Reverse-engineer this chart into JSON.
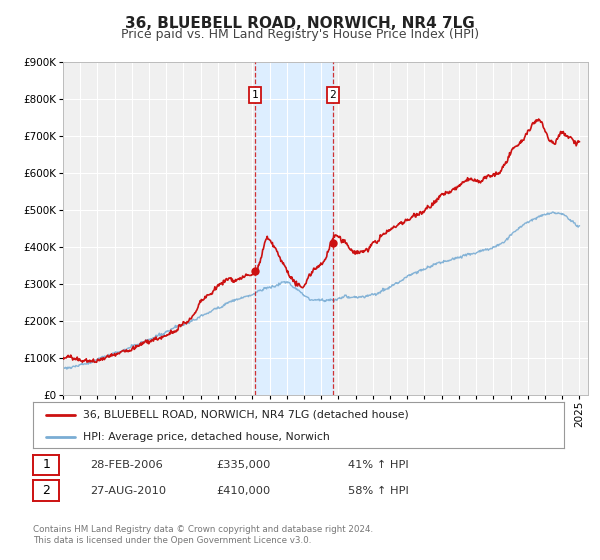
{
  "title": "36, BLUEBELL ROAD, NORWICH, NR4 7LG",
  "subtitle": "Price paid vs. HM Land Registry's House Price Index (HPI)",
  "ylim": [
    0,
    900000
  ],
  "yticks": [
    0,
    100000,
    200000,
    300000,
    400000,
    500000,
    600000,
    700000,
    800000,
    900000
  ],
  "ytick_labels": [
    "£0",
    "£100K",
    "£200K",
    "£300K",
    "£400K",
    "£500K",
    "£600K",
    "£700K",
    "£800K",
    "£900K"
  ],
  "xlim_start": 1995.0,
  "xlim_end": 2025.5,
  "background_color": "#ffffff",
  "plot_bg_color": "#f0f0f0",
  "grid_color": "#ffffff",
  "shade_color": "#ddeeff",
  "marker1_date": 2006.167,
  "marker1_value": 335000,
  "marker2_date": 2010.667,
  "marker2_value": 410000,
  "hpi_line_color": "#7aadd4",
  "price_line_color": "#cc1111",
  "legend_label_price": "36, BLUEBELL ROAD, NORWICH, NR4 7LG (detached house)",
  "legend_label_hpi": "HPI: Average price, detached house, Norwich",
  "table_row1": [
    "1",
    "28-FEB-2006",
    "£335,000",
    "41% ↑ HPI"
  ],
  "table_row2": [
    "2",
    "27-AUG-2010",
    "£410,000",
    "58% ↑ HPI"
  ],
  "footer": "Contains HM Land Registry data © Crown copyright and database right 2024.\nThis data is licensed under the Open Government Licence v3.0.",
  "title_fontsize": 11,
  "subtitle_fontsize": 9,
  "tick_fontsize": 7.5,
  "red_years": [
    1995.0,
    1995.5,
    1996.0,
    1996.5,
    1997.0,
    1997.5,
    1998.0,
    1998.5,
    1999.0,
    1999.5,
    2000.0,
    2000.5,
    2001.0,
    2001.5,
    2002.0,
    2002.5,
    2003.0,
    2003.5,
    2004.0,
    2004.5,
    2005.0,
    2005.5,
    2006.0,
    2006.167,
    2006.5,
    2006.8,
    2007.0,
    2007.3,
    2007.6,
    2008.0,
    2008.3,
    2008.6,
    2009.0,
    2009.3,
    2009.6,
    2010.0,
    2010.3,
    2010.667,
    2010.9,
    2011.0,
    2011.3,
    2011.6,
    2012.0,
    2012.3,
    2012.6,
    2013.0,
    2013.5,
    2014.0,
    2014.5,
    2015.0,
    2015.5,
    2016.0,
    2016.5,
    2017.0,
    2017.5,
    2018.0,
    2018.5,
    2019.0,
    2019.5,
    2020.0,
    2020.5,
    2021.0,
    2021.5,
    2022.0,
    2022.3,
    2022.6,
    2022.9,
    2023.0,
    2023.3,
    2023.6,
    2023.9,
    2024.0,
    2024.3,
    2024.6,
    2024.9,
    2025.0
  ],
  "red_values": [
    97000,
    98000,
    100000,
    103000,
    108000,
    115000,
    120000,
    130000,
    140000,
    150000,
    160000,
    170000,
    175000,
    185000,
    200000,
    220000,
    250000,
    270000,
    295000,
    310000,
    315000,
    325000,
    330000,
    335000,
    370000,
    415000,
    410000,
    390000,
    360000,
    335000,
    310000,
    295000,
    285000,
    310000,
    330000,
    340000,
    365000,
    410000,
    410000,
    405000,
    395000,
    385000,
    375000,
    380000,
    385000,
    400000,
    420000,
    440000,
    460000,
    480000,
    500000,
    510000,
    530000,
    550000,
    560000,
    570000,
    580000,
    580000,
    590000,
    600000,
    620000,
    660000,
    690000,
    720000,
    745000,
    760000,
    740000,
    730000,
    710000,
    700000,
    720000,
    720000,
    710000,
    700000,
    690000,
    695000
  ],
  "blue_years": [
    1995.0,
    1995.5,
    1996.0,
    1996.5,
    1997.0,
    1997.5,
    1998.0,
    1998.5,
    1999.0,
    1999.5,
    2000.0,
    2000.5,
    2001.0,
    2001.5,
    2002.0,
    2002.5,
    2003.0,
    2003.5,
    2004.0,
    2004.5,
    2005.0,
    2005.5,
    2006.0,
    2006.5,
    2007.0,
    2007.5,
    2008.0,
    2008.3,
    2008.6,
    2009.0,
    2009.3,
    2009.6,
    2010.0,
    2010.3,
    2010.6,
    2010.9,
    2011.0,
    2011.5,
    2012.0,
    2012.5,
    2013.0,
    2013.5,
    2014.0,
    2014.5,
    2015.0,
    2015.5,
    2016.0,
    2016.5,
    2017.0,
    2017.5,
    2018.0,
    2018.5,
    2019.0,
    2019.5,
    2020.0,
    2020.5,
    2021.0,
    2021.5,
    2022.0,
    2022.5,
    2023.0,
    2023.5,
    2024.0,
    2024.3,
    2024.6,
    2025.0
  ],
  "blue_values": [
    72000,
    74000,
    77000,
    80000,
    85000,
    92000,
    98000,
    105000,
    113000,
    120000,
    128000,
    138000,
    145000,
    155000,
    168000,
    180000,
    195000,
    208000,
    220000,
    232000,
    240000,
    248000,
    255000,
    265000,
    275000,
    282000,
    288000,
    278000,
    265000,
    250000,
    240000,
    235000,
    232000,
    235000,
    238000,
    242000,
    244000,
    246000,
    248000,
    250000,
    255000,
    265000,
    278000,
    292000,
    305000,
    318000,
    328000,
    338000,
    345000,
    352000,
    358000,
    365000,
    370000,
    378000,
    385000,
    400000,
    420000,
    435000,
    445000,
    455000,
    465000,
    470000,
    470000,
    460000,
    450000,
    445000
  ]
}
